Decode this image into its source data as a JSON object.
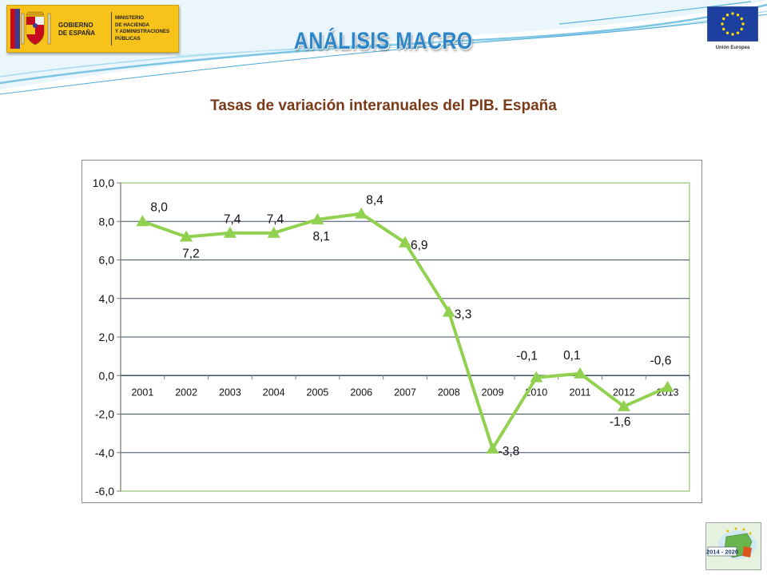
{
  "header": {
    "government": [
      "GOBIERNO",
      "DE ESPAÑA"
    ],
    "ministry": [
      "MINISTERIO",
      "DE HACIENDA",
      "Y ADMINISTRACIONES",
      "PÚBLICAS"
    ],
    "eu_label": "Unión Europea",
    "title": "ANÁLISIS MACRO"
  },
  "badge_label": "2014 - 2020",
  "colors": {
    "title": "#2e86c8",
    "chart_title": "#7a3a18",
    "series": "#92d050",
    "plot_border": "#a9d18e",
    "gridline": "#3b4f66"
  },
  "chart_data": {
    "type": "line",
    "title": "Tasas de variación interanuales del PIB. España",
    "categories": [
      "2001",
      "2002",
      "2003",
      "2004",
      "2005",
      "2006",
      "2007",
      "2008",
      "2009",
      "2010",
      "2011",
      "2012",
      "2013"
    ],
    "series": [
      {
        "values": [
          8.0,
          7.2,
          7.4,
          7.4,
          8.1,
          8.4,
          6.9,
          3.3,
          -3.8,
          -0.1,
          0.1,
          -1.6,
          -0.6
        ]
      }
    ],
    "data_labels": [
      "8,0",
      "7,2",
      "7,4",
      "7,4",
      "8,1",
      "8,4",
      "6,9",
      "3,3",
      "-3,8",
      "-0,1",
      "0,1",
      "-1,6",
      "-0,6"
    ],
    "yticks": [
      "10,0",
      "8,0",
      "6,0",
      "4,0",
      "2,0",
      "0,0",
      "-2,0",
      "-4,0",
      "-6,0"
    ],
    "ylim": [
      -6,
      10
    ],
    "grid": true,
    "marker": "triangle",
    "legend": "none"
  }
}
